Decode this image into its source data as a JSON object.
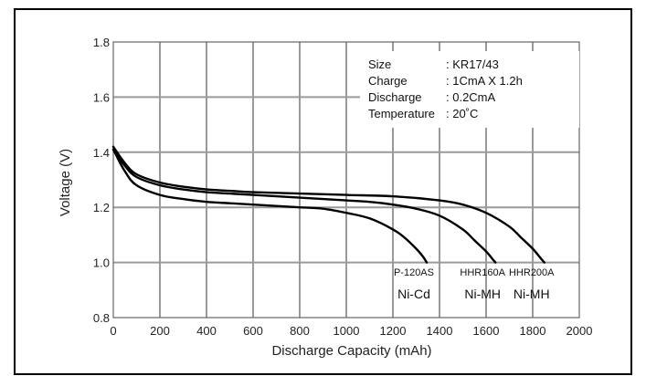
{
  "chart_data": {
    "type": "line",
    "title": "",
    "xlabel": "Discharge Capacity (mAh)",
    "ylabel": "Voltage (V)",
    "xlim": [
      0,
      2000
    ],
    "ylim": [
      0.8,
      1.8
    ],
    "x_ticks": [
      "0",
      "200",
      "400",
      "600",
      "800",
      "1000",
      "1200",
      "1400",
      "1600",
      "1800",
      "2000"
    ],
    "y_ticks": [
      "0.8",
      "1.0",
      "1.2",
      "1.4",
      "1.6",
      "1.8"
    ],
    "grid": true,
    "conditions": [
      {
        "label": "Size",
        "value": ": KR17/43"
      },
      {
        "label": "Charge",
        "value": ": 1CmA X 1.2h"
      },
      {
        "label": "Discharge",
        "value": ": 0.2CmA"
      },
      {
        "label": "Temperature",
        "value": ": 20˚C"
      }
    ],
    "series": [
      {
        "model": "P-120AS",
        "chemistry": "Ni-Cd",
        "x": [
          0,
          50,
          100,
          200,
          300,
          400,
          500,
          600,
          700,
          800,
          900,
          1000,
          1100,
          1200,
          1250,
          1300,
          1330,
          1345
        ],
        "y": [
          1.41,
          1.33,
          1.28,
          1.245,
          1.23,
          1.22,
          1.215,
          1.21,
          1.205,
          1.2,
          1.195,
          1.18,
          1.16,
          1.12,
          1.09,
          1.05,
          1.02,
          1.0
        ]
      },
      {
        "model": "HHR160A",
        "chemistry": "Ni-MH",
        "x": [
          0,
          50,
          100,
          200,
          300,
          400,
          500,
          600,
          700,
          800,
          900,
          1000,
          1100,
          1200,
          1300,
          1400,
          1500,
          1550,
          1600,
          1630,
          1640
        ],
        "y": [
          1.41,
          1.35,
          1.31,
          1.28,
          1.265,
          1.255,
          1.25,
          1.245,
          1.24,
          1.235,
          1.23,
          1.225,
          1.22,
          1.21,
          1.195,
          1.17,
          1.12,
          1.08,
          1.04,
          1.01,
          1.0
        ]
      },
      {
        "model": "HHR200A",
        "chemistry": "Ni-MH",
        "x": [
          0,
          50,
          100,
          200,
          300,
          400,
          500,
          600,
          800,
          1000,
          1200,
          1400,
          1500,
          1600,
          1700,
          1750,
          1800,
          1835,
          1850
        ],
        "y": [
          1.42,
          1.36,
          1.32,
          1.29,
          1.275,
          1.265,
          1.26,
          1.255,
          1.25,
          1.245,
          1.24,
          1.225,
          1.21,
          1.18,
          1.13,
          1.09,
          1.05,
          1.015,
          1.0
        ]
      }
    ]
  }
}
